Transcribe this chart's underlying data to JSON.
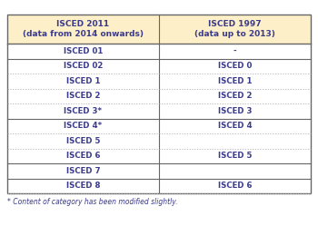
{
  "header_col1": "ISCED 2011\n(data from 2014 onwards)",
  "header_col2": "ISCED 1997\n(data up to 2013)",
  "rows": [
    [
      "ISCED 01",
      "-"
    ],
    [
      "ISCED 02",
      "ISCED 0"
    ],
    [
      "ISCED 1",
      "ISCED 1"
    ],
    [
      "ISCED 2",
      "ISCED 2"
    ],
    [
      "ISCED 3*",
      "ISCED 3"
    ],
    [
      "ISCED 4*",
      "ISCED 4"
    ],
    [
      "ISCED 5",
      ""
    ],
    [
      "ISCED 6",
      "ISCED 5"
    ],
    [
      "ISCED 7",
      ""
    ],
    [
      "ISCED 8",
      "ISCED 6"
    ]
  ],
  "solid_dividers_after": [
    1,
    5,
    8,
    9
  ],
  "header_bg": "#fdefc8",
  "text_color": "#3b3b8c",
  "solid_color": "#666666",
  "dotted_color": "#aaaaaa",
  "footnote": "* Content of category has been modified slightly.",
  "fig_bg": "#ffffff"
}
